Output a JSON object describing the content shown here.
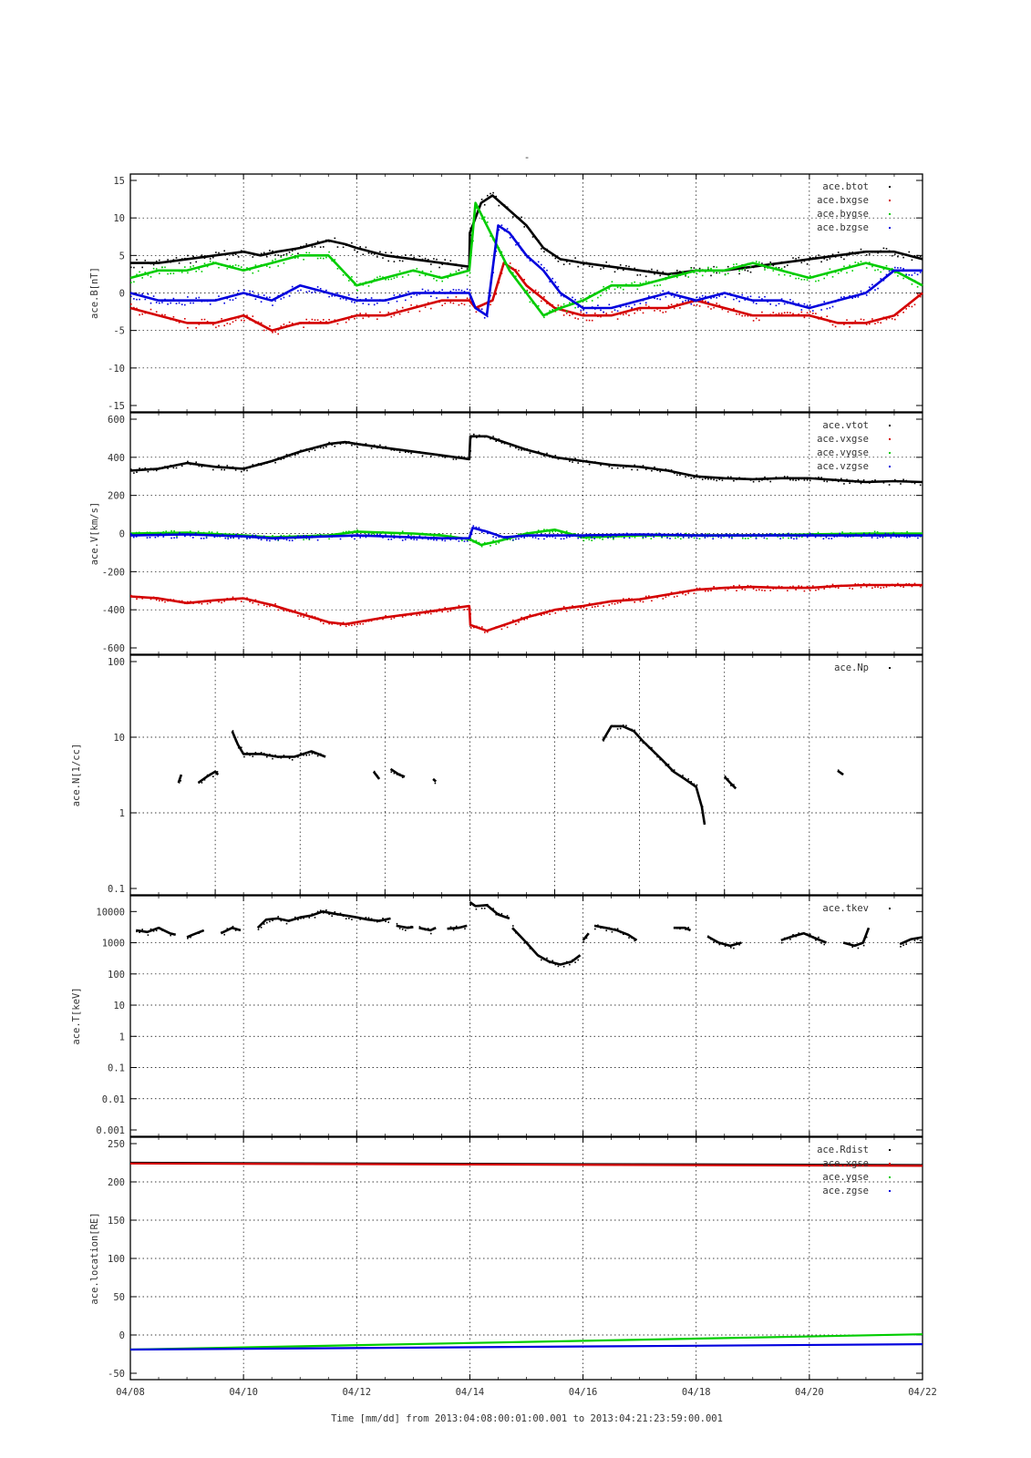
{
  "figure": {
    "title": "-",
    "time_label": "Time [mm/dd]  from 2013:04:08:00:01:00.001  to  2013:04:21:23:59:00.001",
    "x_ticks": [
      "04/08",
      "04/10",
      "04/12",
      "04/14",
      "04/16",
      "04/18",
      "04/20",
      "04/22"
    ],
    "series_colors": {
      "black": "#000000",
      "red": "#d40000",
      "green": "#00cc00",
      "blue": "#0000dd"
    }
  },
  "chart_data": [
    {
      "type": "scatter",
      "ylabel": "ace.B[nT]",
      "ylim": [
        -15,
        15
      ],
      "yscale": "linear",
      "yticks": [
        "15",
        "10",
        "5",
        "0",
        "-5",
        "-10",
        "-15"
      ],
      "xticks_days": [
        2,
        4,
        6,
        8,
        10,
        12
      ],
      "grid": true,
      "legend": "top-right",
      "series": [
        {
          "name": "ace.btot",
          "color": "#000000",
          "x": [
            0,
            0.5,
            1,
            1.5,
            2,
            2.3,
            2.6,
            3,
            3.5,
            3.8,
            4,
            4.5,
            5,
            5.5,
            5.99,
            6,
            6.2,
            6.4,
            6.7,
            7,
            7.3,
            7.6,
            8,
            8.5,
            9,
            9.5,
            10,
            10.5,
            11,
            11.5,
            12,
            12.5,
            13,
            13.5,
            14
          ],
          "y": [
            4,
            4,
            4.5,
            5,
            5.5,
            5,
            5.5,
            6,
            7,
            6.5,
            6,
            5,
            4.5,
            4,
            3.5,
            8,
            12,
            13,
            11,
            9,
            6,
            4.5,
            4,
            3.5,
            3,
            2.5,
            3,
            3,
            3.5,
            4,
            4.5,
            5,
            5.5,
            5.5,
            4.5
          ]
        },
        {
          "name": "ace.bxgse",
          "color": "#d40000",
          "x": [
            0,
            0.5,
            1,
            1.5,
            2,
            2.5,
            3,
            3.5,
            4,
            4.5,
            5,
            5.5,
            5.99,
            6.1,
            6.4,
            6.6,
            6.8,
            7,
            7.5,
            8,
            8.5,
            9,
            9.5,
            10,
            10.5,
            11,
            11.5,
            12,
            12.5,
            13,
            13.5,
            14
          ],
          "y": [
            -2,
            -3,
            -4,
            -4,
            -3,
            -5,
            -4,
            -4,
            -3,
            -3,
            -2,
            -1,
            -1,
            -2,
            -1,
            4,
            3,
            1,
            -2,
            -3,
            -3,
            -2,
            -2,
            -1,
            -2,
            -3,
            -3,
            -3,
            -4,
            -4,
            -3,
            0
          ]
        },
        {
          "name": "ace.bygse",
          "color": "#00cc00",
          "x": [
            0,
            0.5,
            1,
            1.5,
            2,
            2.5,
            3,
            3.5,
            4,
            4.5,
            5,
            5.5,
            5.99,
            6.1,
            6.3,
            6.5,
            6.7,
            7,
            7.3,
            7.6,
            8,
            8.5,
            9,
            9.5,
            10,
            10.5,
            11,
            11.5,
            12,
            12.5,
            13,
            13.5,
            14
          ],
          "y": [
            2,
            3,
            3,
            4,
            3,
            4,
            5,
            5,
            1,
            2,
            3,
            2,
            3,
            12,
            9,
            6,
            3,
            0,
            -3,
            -2,
            -1,
            1,
            1,
            2,
            3,
            3,
            4,
            3,
            2,
            3,
            4,
            3,
            1
          ]
        },
        {
          "name": "ace.bzgse",
          "color": "#0000dd",
          "x": [
            0,
            0.5,
            1,
            1.5,
            2,
            2.5,
            3,
            3.5,
            4,
            4.5,
            5,
            5.5,
            5.99,
            6.1,
            6.3,
            6.5,
            6.7,
            7,
            7.3,
            7.6,
            8,
            8.5,
            9,
            9.5,
            10,
            10.5,
            11,
            11.5,
            12,
            12.5,
            13,
            13.5,
            14
          ],
          "y": [
            0,
            -1,
            -1,
            -1,
            0,
            -1,
            1,
            0,
            -1,
            -1,
            0,
            0,
            0,
            -2,
            -3,
            9,
            8,
            5,
            3,
            0,
            -2,
            -2,
            -1,
            0,
            -1,
            0,
            -1,
            -1,
            -2,
            -1,
            0,
            3,
            3
          ]
        }
      ]
    },
    {
      "type": "scatter",
      "ylabel": "ace.V[km/s]",
      "ylim": [
        -600,
        600
      ],
      "yscale": "linear",
      "yticks": [
        "600",
        "400",
        "200",
        "0",
        "-200",
        "-400",
        "-600"
      ],
      "xticks_days": [
        2,
        4,
        6,
        8,
        10,
        12
      ],
      "grid": true,
      "legend": "top-right",
      "series": [
        {
          "name": "ace.vtot",
          "color": "#000000",
          "x": [
            0,
            0.5,
            1,
            1.5,
            2,
            2.5,
            3,
            3.5,
            3.8,
            4,
            4.5,
            5,
            5.5,
            5.99,
            6.01,
            6.3,
            6.6,
            7,
            7.5,
            8,
            8.5,
            9,
            9.5,
            10,
            10.5,
            11,
            11.5,
            12,
            12.5,
            13,
            13.5,
            14
          ],
          "y": [
            330,
            340,
            370,
            350,
            340,
            380,
            430,
            470,
            480,
            470,
            450,
            430,
            410,
            390,
            510,
            510,
            480,
            440,
            400,
            380,
            360,
            350,
            330,
            300,
            290,
            285,
            290,
            290,
            280,
            270,
            275,
            270
          ]
        },
        {
          "name": "ace.vxgse",
          "color": "#d40000",
          "x": [
            0,
            0.5,
            1,
            1.5,
            2,
            2.5,
            3,
            3.5,
            3.8,
            4,
            4.5,
            5,
            5.5,
            5.99,
            6.01,
            6.3,
            6.6,
            7,
            7.5,
            8,
            8.5,
            9,
            9.5,
            10,
            10.5,
            11,
            11.5,
            12,
            12.5,
            13,
            13.5,
            14
          ],
          "y": [
            -330,
            -340,
            -365,
            -350,
            -340,
            -375,
            -420,
            -465,
            -475,
            -465,
            -440,
            -420,
            -400,
            -380,
            -480,
            -510,
            -480,
            -440,
            -400,
            -380,
            -355,
            -345,
            -320,
            -295,
            -285,
            -280,
            -285,
            -285,
            -275,
            -270,
            -270,
            -270
          ]
        },
        {
          "name": "ace.vygse",
          "color": "#00cc00",
          "x": [
            0,
            1,
            2,
            2.5,
            3,
            3.5,
            4,
            4.5,
            5,
            5.5,
            6,
            6.2,
            6.5,
            7,
            7.5,
            8,
            9,
            10,
            11,
            12,
            13,
            14
          ],
          "y": [
            0,
            5,
            -10,
            -20,
            -15,
            -10,
            10,
            5,
            0,
            -10,
            -30,
            -60,
            -40,
            0,
            20,
            -20,
            -10,
            -10,
            -10,
            -5,
            0,
            0
          ]
        },
        {
          "name": "ace.vzgse",
          "color": "#0000dd",
          "x": [
            0,
            1,
            2,
            2.5,
            3,
            3.5,
            4,
            4.5,
            5,
            5.5,
            5.99,
            6.05,
            6.3,
            6.6,
            7,
            7.5,
            8,
            9,
            10,
            11,
            12,
            13,
            14
          ],
          "y": [
            -10,
            -5,
            -15,
            -25,
            -20,
            -15,
            -10,
            -15,
            -20,
            -25,
            -25,
            30,
            10,
            -20,
            -10,
            -10,
            -10,
            -5,
            -10,
            -10,
            -10,
            -10,
            -10
          ]
        }
      ]
    },
    {
      "type": "scatter",
      "ylabel": "ace.N[1/cc]",
      "ylim": [
        0.1,
        100
      ],
      "yscale": "log",
      "yticks": [
        "100",
        "10",
        "1",
        "0.1"
      ],
      "xticks_days": [
        1.5,
        3,
        4.5,
        6,
        7.5,
        9,
        10.5,
        12
      ],
      "grid": true,
      "legend": "top-right",
      "series": [
        {
          "name": "ace.Np",
          "color": "#000000",
          "segments": [
            {
              "x": [
                0.85,
                0.9
              ],
              "y": [
                2.5,
                3.2
              ]
            },
            {
              "x": [
                1.2,
                1.35,
                1.5,
                1.55
              ],
              "y": [
                2.5,
                3,
                3.5,
                3.2
              ]
            },
            {
              "x": [
                1.8,
                1.9,
                2.0,
                2.3,
                2.6,
                2.9,
                3.2,
                3.45
              ],
              "y": [
                12,
                8,
                6,
                6,
                5.5,
                5.5,
                6.5,
                5.5
              ]
            },
            {
              "x": [
                4.3,
                4.4
              ],
              "y": [
                3.5,
                2.8
              ]
            },
            {
              "x": [
                4.6,
                4.75,
                4.85
              ],
              "y": [
                3.8,
                3.2,
                3
              ]
            },
            {
              "x": [
                5.35,
                5.4
              ],
              "y": [
                2.8,
                2.6
              ]
            },
            {
              "x": [
                8.35,
                8.5,
                8.7,
                8.9,
                9.05,
                9.2,
                9.4,
                9.6,
                9.8,
                10.0,
                10.1,
                10.15
              ],
              "y": [
                9,
                14,
                14,
                12,
                9,
                7,
                5,
                3.5,
                2.8,
                2.2,
                1.2,
                0.7
              ]
            },
            {
              "x": [
                10.5,
                10.6,
                10.7
              ],
              "y": [
                3,
                2.5,
                2.1
              ]
            },
            {
              "x": [
                12.5,
                12.6
              ],
              "y": [
                3.6,
                3.2
              ]
            }
          ]
        }
      ]
    },
    {
      "type": "scatter",
      "ylabel": "ace.T[keV]",
      "ylim": [
        0.001,
        20000
      ],
      "yscale": "log",
      "yticks": [
        "10000",
        "1000",
        "100",
        "10",
        "1",
        "0.1",
        "0.01",
        "0.001"
      ],
      "xticks_days": [
        2,
        4,
        6,
        8,
        10,
        12
      ],
      "grid": true,
      "legend": "top-right",
      "series": [
        {
          "name": "ace.tkev",
          "color": "#000000",
          "segments": [
            {
              "x": [
                0.1,
                0.3,
                0.5,
                0.7,
                0.8
              ],
              "y": [
                2500,
                2200,
                3000,
                2000,
                1800
              ]
            },
            {
              "x": [
                1,
                1.1,
                1.3
              ],
              "y": [
                1500,
                1800,
                2500
              ]
            },
            {
              "x": [
                1.6,
                1.8,
                1.95
              ],
              "y": [
                2000,
                3000,
                2500
              ]
            },
            {
              "x": [
                2.25,
                2.4,
                2.6,
                2.8,
                3.0,
                3.2,
                3.4,
                3.6,
                3.8,
                4.0,
                4.2,
                4.4,
                4.6
              ],
              "y": [
                3000,
                5500,
                6000,
                5000,
                6500,
                7500,
                10000,
                8500,
                7500,
                6500,
                5500,
                5000,
                6000
              ]
            },
            {
              "x": [
                4.7,
                4.9,
                5.0
              ],
              "y": [
                3500,
                3000,
                3200
              ]
            },
            {
              "x": [
                5.1,
                5.3,
                5.4
              ],
              "y": [
                3000,
                2500,
                3000
              ]
            },
            {
              "x": [
                5.6,
                5.8,
                5.95
              ],
              "y": [
                2800,
                3000,
                3500
              ]
            },
            {
              "x": [
                6.0,
                6.1,
                6.3,
                6.5,
                6.7
              ],
              "y": [
                20000,
                15000,
                16000,
                8000,
                6000
              ]
            },
            {
              "x": [
                6.75,
                7.0,
                7.2,
                7.4,
                7.6,
                7.8,
                7.95
              ],
              "y": [
                3000,
                1000,
                400,
                250,
                200,
                250,
                400
              ]
            },
            {
              "x": [
                8.0,
                8.1
              ],
              "y": [
                1200,
                2000
              ]
            },
            {
              "x": [
                8.2,
                8.4,
                8.6,
                8.8,
                8.95
              ],
              "y": [
                3500,
                3000,
                2500,
                1800,
                1200
              ]
            },
            {
              "x": [
                9.6,
                9.8,
                9.9
              ],
              "y": [
                3000,
                3000,
                2500
              ]
            },
            {
              "x": [
                10.2,
                10.4,
                10.6,
                10.8
              ],
              "y": [
                1600,
                1000,
                800,
                1000
              ]
            },
            {
              "x": [
                11.5,
                11.7,
                11.9,
                12.1,
                12.3
              ],
              "y": [
                1200,
                1600,
                2000,
                1400,
                1000
              ]
            },
            {
              "x": [
                12.6,
                12.8,
                12.95,
                13.05
              ],
              "y": [
                1000,
                800,
                1000,
                3000
              ]
            },
            {
              "x": [
                13.6,
                13.8,
                14
              ],
              "y": [
                900,
                1300,
                1500
              ]
            }
          ]
        }
      ]
    },
    {
      "type": "line",
      "ylabel": "ace.location[RE]",
      "ylim": [
        -50,
        250
      ],
      "yscale": "linear",
      "yticks": [
        "250",
        "200",
        "150",
        "100",
        "50",
        "0",
        "-50"
      ],
      "xticks_days": [
        2,
        4,
        6,
        8,
        10,
        12
      ],
      "grid": true,
      "legend": "top-right",
      "series": [
        {
          "name": "ace.Rdist",
          "color": "#000000",
          "x": [
            0,
            14
          ],
          "y": [
            225,
            222
          ]
        },
        {
          "name": "ace.xgse",
          "color": "#d40000",
          "x": [
            0,
            14
          ],
          "y": [
            224,
            221
          ]
        },
        {
          "name": "ace.ygse",
          "color": "#00cc00",
          "x": [
            0,
            14
          ],
          "y": [
            -19,
            1
          ]
        },
        {
          "name": "ace.zgse",
          "color": "#0000dd",
          "x": [
            0,
            14
          ],
          "y": [
            -19,
            -12
          ]
        }
      ]
    }
  ]
}
